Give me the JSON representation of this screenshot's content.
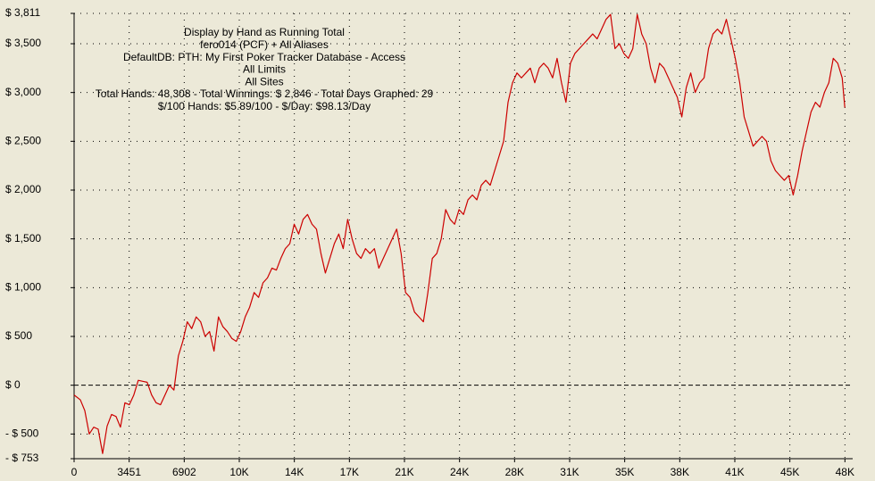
{
  "chart_data": {
    "type": "line",
    "title_lines": [
      "Display by Hand as Running Total",
      "fero014 (PCF) + All Aliases",
      "DefaultDB: PTH: My First Poker Tracker Database - Access",
      "All Limits",
      "All Sites",
      "Total Hands: 48,308 - Total Winnings: $ 2,846 - Total Days Graphed: 29",
      "$/100 Hands: $5.89/100 - $/Day: $98.13/Day"
    ],
    "color": "#cc0000",
    "grid": true,
    "xlim": [
      0,
      48800
    ],
    "ylim": [
      -753,
      3811
    ],
    "xticks": [
      0,
      3451,
      6902,
      {
        "value": 10353,
        "label": "10K"
      },
      {
        "value": 13804,
        "label": "14K"
      },
      {
        "value": 17255,
        "label": "17K"
      },
      {
        "value": 20706,
        "label": "21K"
      },
      {
        "value": 24157,
        "label": "24K"
      },
      {
        "value": 27608,
        "label": "28K"
      },
      {
        "value": 31059,
        "label": "31K"
      },
      {
        "value": 34510,
        "label": "35K"
      },
      {
        "value": 37961,
        "label": "38K"
      },
      {
        "value": 41412,
        "label": "41K"
      },
      {
        "value": 44863,
        "label": "45K"
      },
      {
        "value": 48314,
        "label": "48K"
      }
    ],
    "yticks": [
      {
        "value": -753,
        "label": "- $ 753"
      },
      {
        "value": -500,
        "label": "- $ 500"
      },
      {
        "value": 0,
        "label": "$ 0"
      },
      {
        "value": 500,
        "label": "$ 500"
      },
      {
        "value": 1000,
        "label": "$ 1,000"
      },
      {
        "value": 1500,
        "label": "$ 1,500"
      },
      {
        "value": 2000,
        "label": "$ 2,000"
      },
      {
        "value": 2500,
        "label": "$ 2,500"
      },
      {
        "value": 3000,
        "label": "$ 3,000"
      },
      {
        "value": 3500,
        "label": "$ 3,500"
      },
      {
        "value": 3811,
        "label": "$ 3,811"
      }
    ],
    "x": [
      0,
      391,
      670,
      949,
      1229,
      1508,
      1787,
      2067,
      2346,
      2625,
      2904,
      3184,
      3463,
      3742,
      4021,
      4301,
      4580,
      4859,
      5138,
      5418,
      5697,
      5976,
      6255,
      6535,
      6814,
      7093,
      7372,
      7652,
      7931,
      8210,
      8489,
      8769,
      9048,
      9327,
      9606,
      9886,
      10165,
      10444,
      10723,
      11003,
      11282,
      11561,
      11840,
      12120,
      12399,
      12678,
      12957,
      13237,
      13516,
      13795,
      14074,
      14354,
      14633,
      14912,
      15191,
      15471,
      15750,
      16029,
      16308,
      16588,
      16867,
      17146,
      17425,
      17705,
      17984,
      18263,
      18542,
      18822,
      19101,
      19380,
      19659,
      19939,
      20218,
      20497,
      20776,
      21056,
      21335,
      21614,
      21893,
      22173,
      22452,
      22731,
      23010,
      23290,
      23569,
      23848,
      24127,
      24407,
      24686,
      24965,
      25244,
      25524,
      25803,
      26082,
      26361,
      26641,
      26920,
      27199,
      27478,
      27758,
      28037,
      28316,
      28595,
      28875,
      29154,
      29433,
      29712,
      29992,
      30271,
      30550,
      30829,
      31109,
      31388,
      31667,
      31946,
      32226,
      32505,
      32784,
      33063,
      33343,
      33622,
      33901,
      34180,
      34460,
      34739,
      35018,
      35297,
      35577,
      35856,
      36135,
      36414,
      36694,
      36973,
      37252,
      37531,
      37811,
      38090,
      38369,
      38648,
      38928,
      39207,
      39486,
      39765,
      40045,
      40324,
      40603,
      40882,
      41162,
      41441,
      41720,
      41999,
      42279,
      42558,
      42837,
      43116,
      43396,
      43675,
      43954,
      44233,
      44513,
      44792,
      45071,
      45350,
      45630,
      45909,
      46188,
      46467,
      46747,
      47026,
      47305,
      47584,
      47864,
      48143,
      48308
    ],
    "values": [
      -100,
      -150,
      -260,
      -500,
      -430,
      -450,
      -700,
      -420,
      -300,
      -320,
      -430,
      -180,
      -200,
      -100,
      50,
      40,
      30,
      -100,
      -180,
      -200,
      -100,
      0,
      -50,
      300,
      450,
      650,
      580,
      700,
      650,
      500,
      550,
      350,
      700,
      600,
      550,
      480,
      450,
      550,
      700,
      800,
      950,
      900,
      1050,
      1100,
      1200,
      1180,
      1300,
      1400,
      1450,
      1650,
      1550,
      1700,
      1750,
      1650,
      1600,
      1350,
      1150,
      1300,
      1450,
      1550,
      1400,
      1700,
      1500,
      1350,
      1300,
      1400,
      1350,
      1400,
      1200,
      1300,
      1400,
      1500,
      1600,
      1350,
      950,
      900,
      750,
      700,
      650,
      950,
      1300,
      1350,
      1500,
      1800,
      1700,
      1650,
      1800,
      1750,
      1900,
      1950,
      1900,
      2050,
      2100,
      2050,
      2200,
      2350,
      2500,
      2900,
      3100,
      3200,
      3150,
      3200,
      3250,
      3100,
      3250,
      3300,
      3250,
      3150,
      3350,
      3100,
      2900,
      3300,
      3400,
      3450,
      3500,
      3550,
      3600,
      3550,
      3650,
      3750,
      3800,
      3450,
      3500,
      3400,
      3350,
      3450,
      3800,
      3600,
      3500,
      3250,
      3100,
      3300,
      3250,
      3150,
      3050,
      2950,
      2750,
      3050,
      3200,
      3000,
      3100,
      3150,
      3450,
      3600,
      3650,
      3600,
      3750,
      3550,
      3350,
      3100,
      2750,
      2600,
      2450,
      2500,
      2550,
      2500,
      2300,
      2200,
      2150,
      2100,
      2150,
      1950,
      2150,
      2400,
      2600,
      2800,
      2900,
      2850,
      3000,
      3100,
      3350,
      3300,
      3150,
      2846
    ]
  }
}
